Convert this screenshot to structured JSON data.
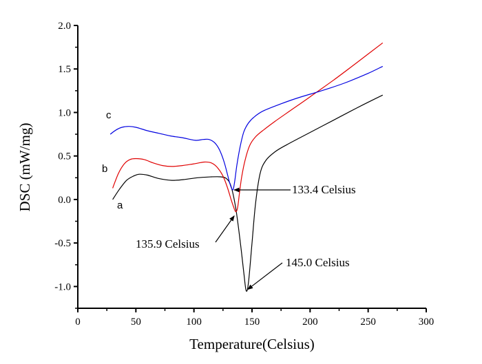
{
  "chart_data": {
    "type": "line",
    "title": "",
    "xlabel": "Temperature(Celsius)",
    "ylabel": "DSC (mW/mg)",
    "xlim": [
      0,
      300
    ],
    "ylim": [
      -1.25,
      2.0
    ],
    "xticks": [
      0,
      50,
      100,
      150,
      200,
      250,
      300
    ],
    "xtick_labels": [
      "0",
      "50",
      "100",
      "150",
      "200",
      "250",
      "300"
    ],
    "yticks": [
      -1.0,
      -0.5,
      0.0,
      0.5,
      1.0,
      1.5,
      2.0
    ],
    "ytick_labels": [
      "-1.0",
      "-0.5",
      "0.0",
      "0.5",
      "1.0",
      "1.5",
      "2.0"
    ],
    "grid": false,
    "series": [
      {
        "name": "a",
        "color": "#000000",
        "x": [
          30,
          36,
          42,
          48,
          53,
          60,
          70,
          81,
          92,
          103,
          115,
          123,
          128,
          132,
          136,
          140,
          143,
          145,
          147,
          150,
          153,
          157,
          162,
          170,
          180,
          200,
          220,
          240,
          262.5
        ],
        "y": [
          0.0,
          0.12,
          0.22,
          0.27,
          0.29,
          0.28,
          0.24,
          0.22,
          0.23,
          0.25,
          0.26,
          0.26,
          0.24,
          0.15,
          -0.1,
          -0.5,
          -0.85,
          -1.05,
          -0.95,
          -0.5,
          -0.05,
          0.3,
          0.45,
          0.55,
          0.63,
          0.77,
          0.91,
          1.05,
          1.2
        ]
      },
      {
        "name": "b",
        "color": "#e00000",
        "x": [
          30,
          35,
          40,
          45,
          50,
          57,
          65,
          73,
          81,
          90,
          100,
          109,
          115,
          120,
          125,
          129,
          132,
          134,
          135.9,
          137.5,
          139,
          141,
          144,
          148,
          153,
          160,
          170,
          185,
          200,
          220,
          240,
          262.5
        ],
        "y": [
          0.13,
          0.3,
          0.41,
          0.46,
          0.47,
          0.46,
          0.42,
          0.39,
          0.38,
          0.39,
          0.41,
          0.43,
          0.42,
          0.37,
          0.27,
          0.13,
          0.0,
          -0.08,
          -0.14,
          -0.1,
          0.05,
          0.25,
          0.45,
          0.62,
          0.72,
          0.8,
          0.9,
          1.04,
          1.18,
          1.37,
          1.57,
          1.8
        ]
      },
      {
        "name": "c",
        "color": "#0000e0",
        "x": [
          28,
          33,
          38,
          44,
          50,
          60,
          70,
          80,
          90,
          101,
          108,
          113,
          118,
          122,
          126,
          129,
          131,
          133.4,
          135,
          137,
          140,
          143,
          147,
          152,
          160,
          175,
          190,
          210,
          230,
          250,
          262.5
        ],
        "y": [
          0.75,
          0.8,
          0.83,
          0.84,
          0.83,
          0.79,
          0.76,
          0.73,
          0.71,
          0.68,
          0.69,
          0.69,
          0.65,
          0.57,
          0.43,
          0.28,
          0.18,
          0.11,
          0.2,
          0.4,
          0.62,
          0.78,
          0.88,
          0.95,
          1.02,
          1.1,
          1.17,
          1.25,
          1.34,
          1.45,
          1.53
        ]
      }
    ],
    "curve_labels": [
      "a",
      "b",
      "c"
    ],
    "annotations": [
      {
        "text": "133.4 Celsius",
        "x": 133.4,
        "y": 0.11,
        "series": "c"
      },
      {
        "text": "135.9 Celsius",
        "x": 135.9,
        "y": -0.14,
        "series": "b"
      },
      {
        "text": "145.0 Celsius",
        "x": 145.0,
        "y": -1.05,
        "series": "a"
      }
    ],
    "legend": "none"
  }
}
